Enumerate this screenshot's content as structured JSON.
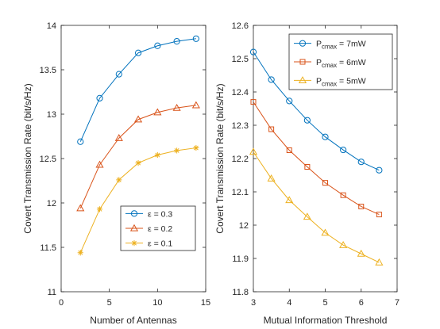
{
  "chart_data": [
    {
      "type": "line",
      "xlabel": "Number of Antennas",
      "ylabel": "Covert Transmission Rate (bit/s/Hz)",
      "xlim": [
        0,
        15
      ],
      "ylim": [
        11,
        14
      ],
      "xticks": [
        0,
        5,
        10,
        15
      ],
      "yticks": [
        11,
        11.5,
        12,
        12.5,
        13,
        13.5,
        14
      ],
      "grid": false,
      "legend": "bottom-right",
      "x": [
        2,
        4,
        6,
        8,
        10,
        12,
        14
      ],
      "series": [
        {
          "name": "ε = 0.3",
          "marker": "circle",
          "color": "#0072BD",
          "values": [
            12.69,
            13.18,
            13.45,
            13.69,
            13.77,
            13.82,
            13.85
          ]
        },
        {
          "name": "ε = 0.2",
          "marker": "triangle",
          "color": "#D95319",
          "values": [
            11.94,
            12.43,
            12.73,
            12.94,
            13.02,
            13.07,
            13.1
          ]
        },
        {
          "name": "ε = 0.1",
          "marker": "asterisk",
          "color": "#EDB120",
          "values": [
            11.44,
            11.93,
            12.26,
            12.45,
            12.54,
            12.59,
            12.62
          ]
        }
      ]
    },
    {
      "type": "line",
      "xlabel": "Mutual Information Threshold",
      "ylabel": "Covert Transmission Rate (bit/s/Hz)",
      "xlim": [
        3,
        7
      ],
      "ylim": [
        11.8,
        12.6
      ],
      "xticks": [
        3,
        4,
        5,
        6,
        7
      ],
      "yticks": [
        11.8,
        11.9,
        12,
        12.1,
        12.2,
        12.3,
        12.4,
        12.5,
        12.6
      ],
      "grid": false,
      "legend": "top-right",
      "x": [
        3,
        3.5,
        4,
        4.5,
        5,
        5.5,
        6,
        6.5
      ],
      "series": [
        {
          "name": "P",
          "name_sub": "cmax",
          "name_suffix": " = 7mW",
          "marker": "circle",
          "color": "#0072BD",
          "values": [
            12.52,
            12.437,
            12.373,
            12.315,
            12.265,
            12.226,
            12.19,
            12.165
          ]
        },
        {
          "name": "P",
          "name_sub": "cmax",
          "name_suffix": " = 6mW",
          "marker": "square",
          "color": "#D95319",
          "values": [
            12.37,
            12.288,
            12.225,
            12.175,
            12.127,
            12.09,
            12.056,
            12.032
          ]
        },
        {
          "name": "P",
          "name_sub": "cmax",
          "name_suffix": " = 5mW",
          "marker": "triangle",
          "color": "#EDB120",
          "values": [
            12.22,
            12.14,
            12.075,
            12.025,
            11.977,
            11.94,
            11.914,
            11.888
          ]
        }
      ]
    }
  ]
}
